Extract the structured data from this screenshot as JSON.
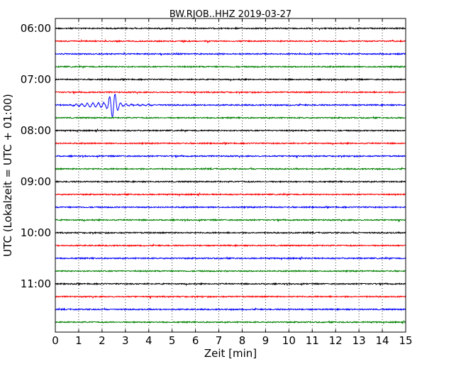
{
  "chart_data": {
    "type": "line",
    "title": "BW.RJOB..HHZ 2019-03-27",
    "xlabel": "Zeit  [min]",
    "ylabel": "UTC (Lokalzeit = UTC + 01:00)",
    "xlim": [
      0,
      15
    ],
    "x_ticks": [
      "0",
      "1",
      "2",
      "3",
      "4",
      "5",
      "6",
      "7",
      "8",
      "9",
      "10",
      "11",
      "12",
      "13",
      "14",
      "15"
    ],
    "y_ticks": [
      "06:00",
      "07:00",
      "08:00",
      "09:00",
      "10:00",
      "11:00"
    ],
    "grid": "vertical dotted lines at each minute",
    "trace_colors": [
      "#000000",
      "#ff0000",
      "#0000ff",
      "#008000"
    ],
    "traces": [
      {
        "start": "06:00"
      },
      {
        "start": "06:15"
      },
      {
        "start": "06:30"
      },
      {
        "start": "06:45"
      },
      {
        "start": "07:00"
      },
      {
        "start": "07:15"
      },
      {
        "start": "07:30",
        "event": {
          "t_start_min": 0.7,
          "t_end_min": 4.5,
          "peak_min": 2.45
        }
      },
      {
        "start": "07:45"
      },
      {
        "start": "08:00"
      },
      {
        "start": "08:15"
      },
      {
        "start": "08:30"
      },
      {
        "start": "08:45"
      },
      {
        "start": "09:00"
      },
      {
        "start": "09:15"
      },
      {
        "start": "09:30"
      },
      {
        "start": "09:45"
      },
      {
        "start": "10:00"
      },
      {
        "start": "10:15"
      },
      {
        "start": "10:30"
      },
      {
        "start": "10:45"
      },
      {
        "start": "11:00"
      },
      {
        "start": "11:15"
      },
      {
        "start": "11:30"
      },
      {
        "start": "11:45"
      }
    ]
  }
}
